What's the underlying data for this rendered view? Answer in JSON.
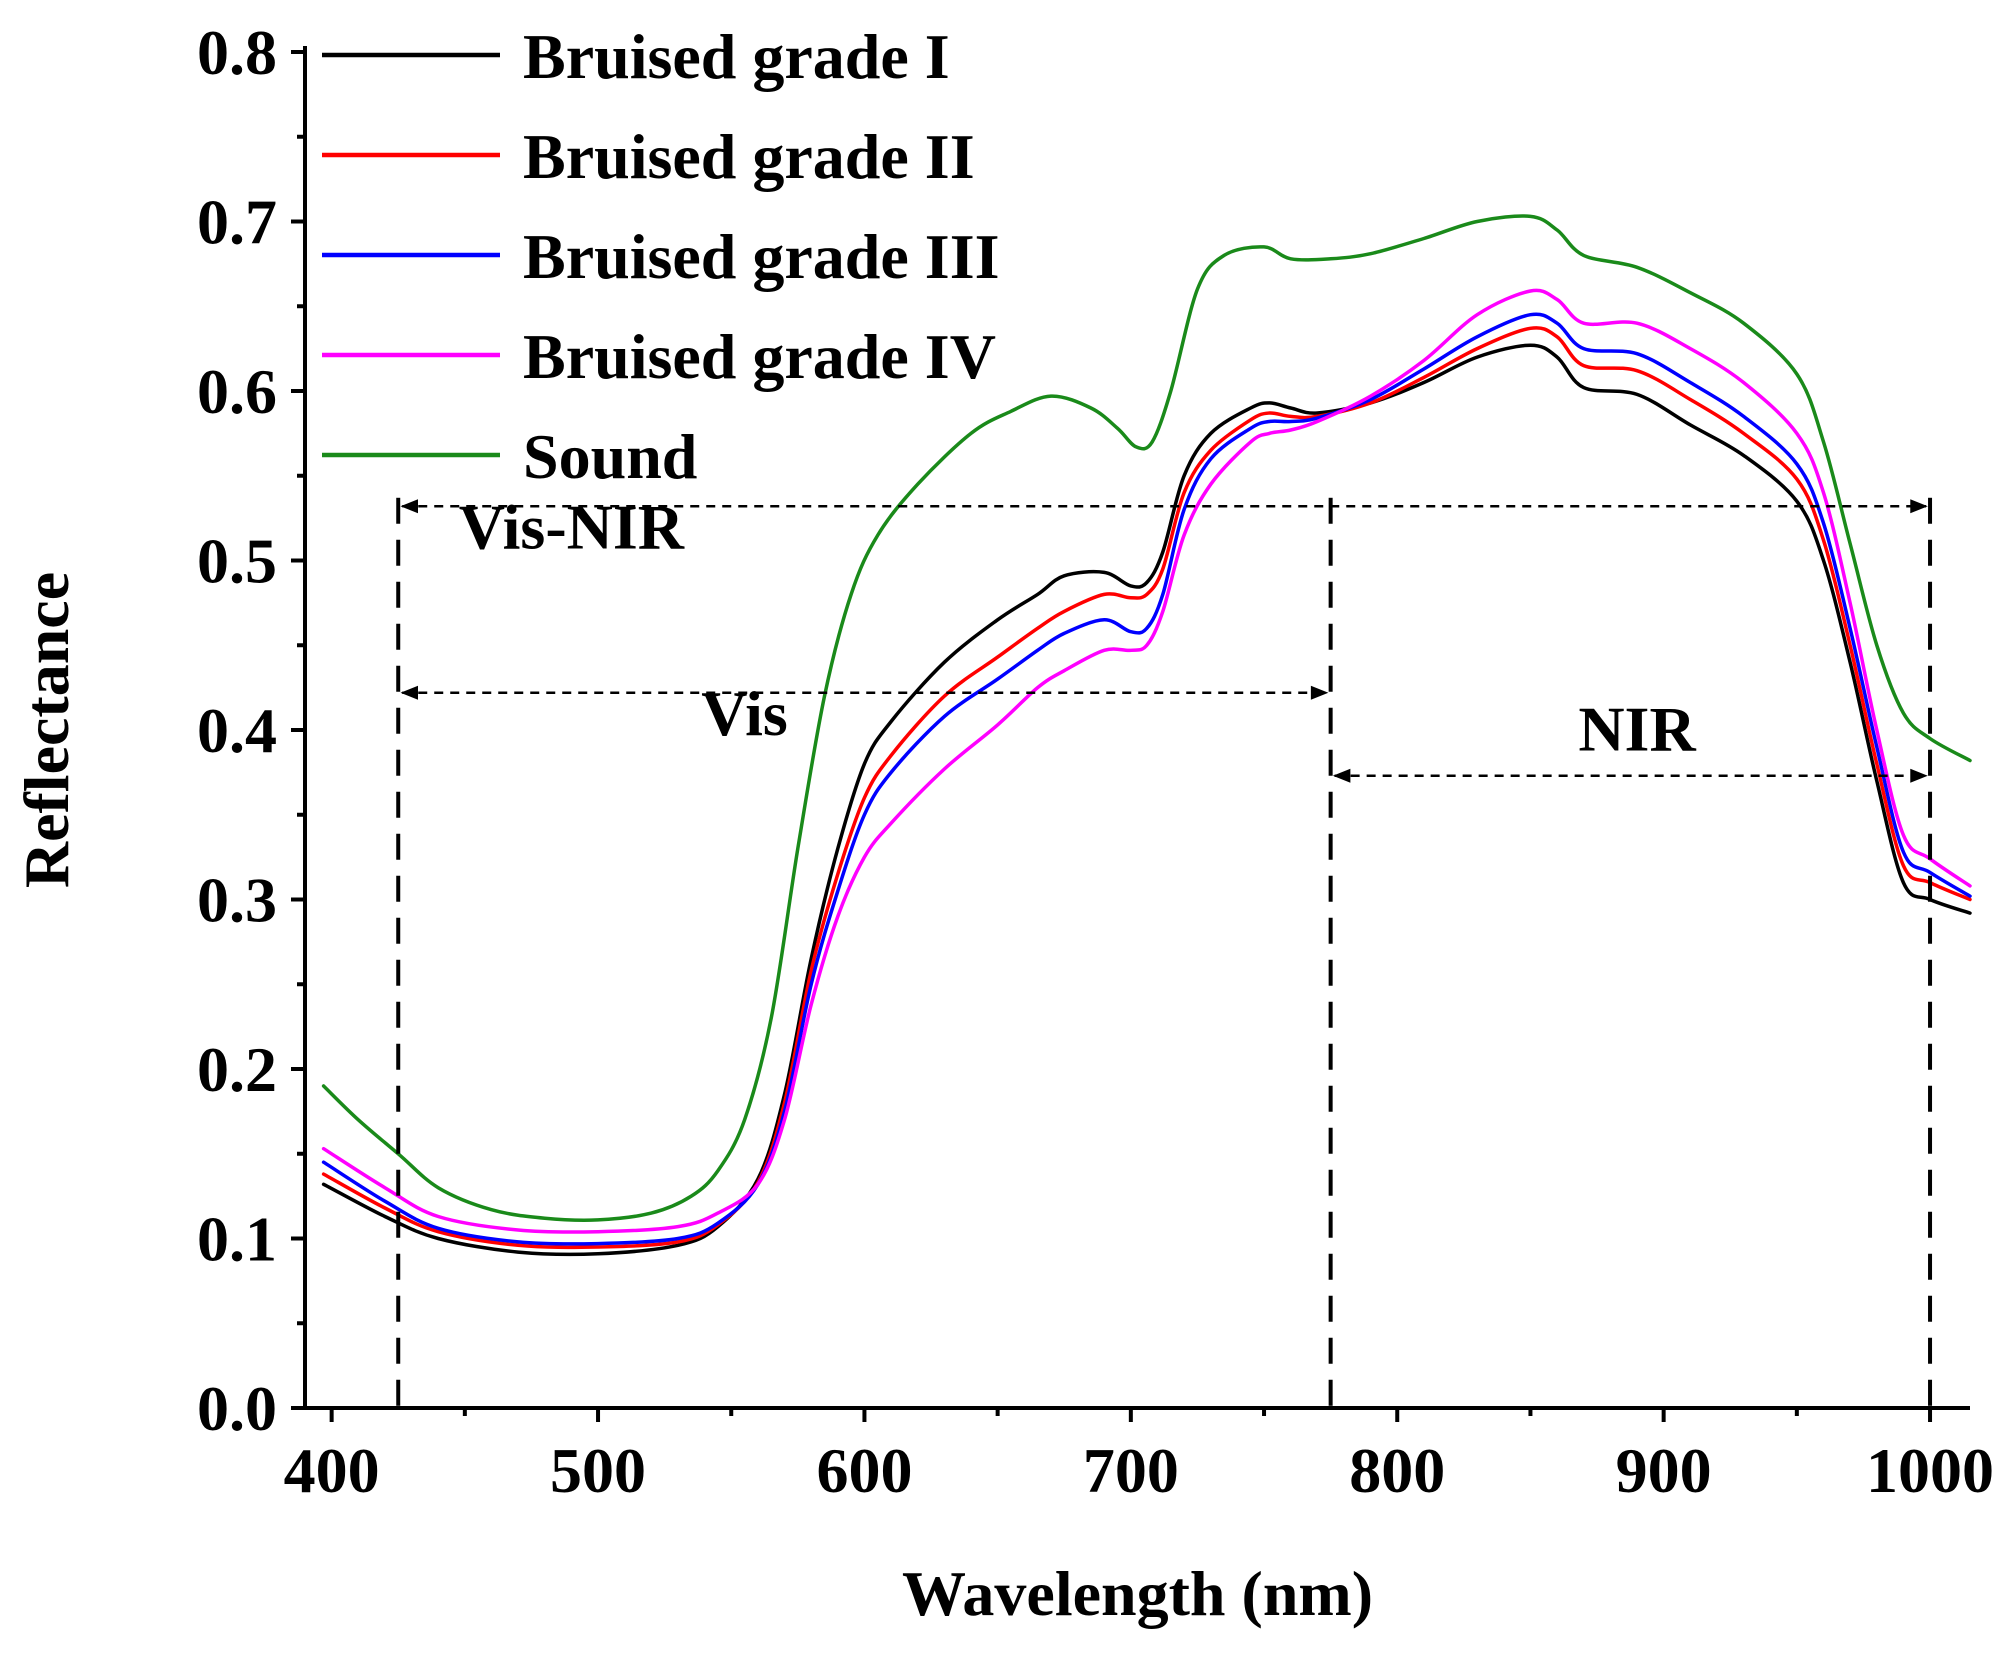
{
  "chart_data": {
    "type": "line",
    "title": "",
    "xlabel": "Wavelength (nm)",
    "ylabel": "Reflectance",
    "xlim": [
      390,
      1015
    ],
    "ylim": [
      0,
      0.8
    ],
    "x_ticks": [
      400,
      500,
      600,
      700,
      800,
      900,
      1000
    ],
    "x_tick_labels": [
      "400",
      "500",
      "600",
      "700",
      "800",
      "900",
      "1000"
    ],
    "y_ticks": [
      0,
      0.1,
      0.2,
      0.3,
      0.4,
      0.5,
      0.6,
      0.7,
      0.8
    ],
    "y_tick_labels": [
      "0.0",
      "0.1",
      "0.2",
      "0.3",
      "0.4",
      "0.5",
      "0.6",
      "0.7",
      "0.8"
    ],
    "grid": false,
    "legend_position": "top-left",
    "series": [
      {
        "name": "Bruised grade I",
        "color": "#000000",
        "points": [
          [
            397,
            0.132
          ],
          [
            420,
            0.113
          ],
          [
            440,
            0.1
          ],
          [
            470,
            0.092
          ],
          [
            500,
            0.091
          ],
          [
            530,
            0.096
          ],
          [
            545,
            0.107
          ],
          [
            560,
            0.135
          ],
          [
            570,
            0.185
          ],
          [
            580,
            0.265
          ],
          [
            590,
            0.33
          ],
          [
            600,
            0.38
          ],
          [
            610,
            0.405
          ],
          [
            630,
            0.44
          ],
          [
            650,
            0.465
          ],
          [
            665,
            0.48
          ],
          [
            675,
            0.491
          ],
          [
            690,
            0.493
          ],
          [
            700,
            0.485
          ],
          [
            706,
            0.487
          ],
          [
            712,
            0.505
          ],
          [
            720,
            0.55
          ],
          [
            730,
            0.575
          ],
          [
            745,
            0.59
          ],
          [
            752,
            0.593
          ],
          [
            760,
            0.59
          ],
          [
            770,
            0.587
          ],
          [
            790,
            0.593
          ],
          [
            810,
            0.605
          ],
          [
            830,
            0.62
          ],
          [
            850,
            0.627
          ],
          [
            860,
            0.62
          ],
          [
            870,
            0.602
          ],
          [
            890,
            0.598
          ],
          [
            910,
            0.58
          ],
          [
            930,
            0.562
          ],
          [
            950,
            0.535
          ],
          [
            960,
            0.5
          ],
          [
            970,
            0.44
          ],
          [
            980,
            0.37
          ],
          [
            990,
            0.31
          ],
          [
            1000,
            0.3
          ],
          [
            1015,
            0.292
          ]
        ]
      },
      {
        "name": "Bruised grade II",
        "color": "#ff0000",
        "points": [
          [
            397,
            0.138
          ],
          [
            420,
            0.118
          ],
          [
            440,
            0.104
          ],
          [
            470,
            0.096
          ],
          [
            500,
            0.095
          ],
          [
            530,
            0.098
          ],
          [
            545,
            0.108
          ],
          [
            560,
            0.133
          ],
          [
            570,
            0.18
          ],
          [
            580,
            0.258
          ],
          [
            590,
            0.315
          ],
          [
            600,
            0.36
          ],
          [
            610,
            0.385
          ],
          [
            630,
            0.42
          ],
          [
            650,
            0.443
          ],
          [
            665,
            0.46
          ],
          [
            675,
            0.47
          ],
          [
            690,
            0.48
          ],
          [
            700,
            0.478
          ],
          [
            706,
            0.48
          ],
          [
            712,
            0.495
          ],
          [
            720,
            0.54
          ],
          [
            730,
            0.565
          ],
          [
            745,
            0.583
          ],
          [
            752,
            0.587
          ],
          [
            760,
            0.585
          ],
          [
            770,
            0.585
          ],
          [
            790,
            0.593
          ],
          [
            810,
            0.608
          ],
          [
            830,
            0.625
          ],
          [
            850,
            0.637
          ],
          [
            860,
            0.632
          ],
          [
            870,
            0.615
          ],
          [
            890,
            0.612
          ],
          [
            910,
            0.595
          ],
          [
            930,
            0.575
          ],
          [
            950,
            0.548
          ],
          [
            960,
            0.512
          ],
          [
            970,
            0.45
          ],
          [
            980,
            0.38
          ],
          [
            990,
            0.32
          ],
          [
            1000,
            0.31
          ],
          [
            1015,
            0.3
          ]
        ]
      },
      {
        "name": "Bruised grade III",
        "color": "#0000ff",
        "points": [
          [
            397,
            0.145
          ],
          [
            420,
            0.122
          ],
          [
            440,
            0.106
          ],
          [
            470,
            0.098
          ],
          [
            500,
            0.097
          ],
          [
            530,
            0.1
          ],
          [
            545,
            0.109
          ],
          [
            560,
            0.132
          ],
          [
            570,
            0.175
          ],
          [
            580,
            0.25
          ],
          [
            590,
            0.305
          ],
          [
            600,
            0.35
          ],
          [
            610,
            0.375
          ],
          [
            630,
            0.408
          ],
          [
            650,
            0.43
          ],
          [
            665,
            0.447
          ],
          [
            675,
            0.457
          ],
          [
            690,
            0.465
          ],
          [
            700,
            0.458
          ],
          [
            706,
            0.46
          ],
          [
            712,
            0.48
          ],
          [
            720,
            0.53
          ],
          [
            730,
            0.56
          ],
          [
            745,
            0.578
          ],
          [
            752,
            0.582
          ],
          [
            760,
            0.582
          ],
          [
            770,
            0.584
          ],
          [
            790,
            0.595
          ],
          [
            810,
            0.613
          ],
          [
            830,
            0.632
          ],
          [
            850,
            0.645
          ],
          [
            860,
            0.64
          ],
          [
            870,
            0.625
          ],
          [
            890,
            0.622
          ],
          [
            910,
            0.605
          ],
          [
            930,
            0.585
          ],
          [
            950,
            0.557
          ],
          [
            960,
            0.522
          ],
          [
            970,
            0.46
          ],
          [
            980,
            0.39
          ],
          [
            990,
            0.328
          ],
          [
            1000,
            0.316
          ],
          [
            1015,
            0.302
          ]
        ]
      },
      {
        "name": "Bruised grade IV",
        "color": "#ff00ff",
        "points": [
          [
            397,
            0.153
          ],
          [
            420,
            0.13
          ],
          [
            440,
            0.113
          ],
          [
            470,
            0.105
          ],
          [
            500,
            0.104
          ],
          [
            530,
            0.107
          ],
          [
            545,
            0.115
          ],
          [
            560,
            0.132
          ],
          [
            570,
            0.17
          ],
          [
            580,
            0.238
          ],
          [
            590,
            0.29
          ],
          [
            600,
            0.325
          ],
          [
            610,
            0.345
          ],
          [
            630,
            0.377
          ],
          [
            650,
            0.403
          ],
          [
            665,
            0.425
          ],
          [
            675,
            0.435
          ],
          [
            690,
            0.447
          ],
          [
            700,
            0.447
          ],
          [
            706,
            0.45
          ],
          [
            712,
            0.47
          ],
          [
            720,
            0.515
          ],
          [
            730,
            0.545
          ],
          [
            745,
            0.57
          ],
          [
            752,
            0.575
          ],
          [
            760,
            0.577
          ],
          [
            770,
            0.582
          ],
          [
            790,
            0.597
          ],
          [
            810,
            0.618
          ],
          [
            830,
            0.645
          ],
          [
            850,
            0.659
          ],
          [
            860,
            0.654
          ],
          [
            870,
            0.64
          ],
          [
            890,
            0.64
          ],
          [
            910,
            0.625
          ],
          [
            930,
            0.605
          ],
          [
            950,
            0.575
          ],
          [
            960,
            0.54
          ],
          [
            970,
            0.475
          ],
          [
            980,
            0.4
          ],
          [
            990,
            0.338
          ],
          [
            1000,
            0.324
          ],
          [
            1015,
            0.308
          ]
        ]
      },
      {
        "name": "Sound",
        "color": "#1a8a1a",
        "points": [
          [
            397,
            0.19
          ],
          [
            410,
            0.17
          ],
          [
            425,
            0.15
          ],
          [
            440,
            0.13
          ],
          [
            460,
            0.117
          ],
          [
            480,
            0.112
          ],
          [
            500,
            0.111
          ],
          [
            520,
            0.115
          ],
          [
            535,
            0.125
          ],
          [
            545,
            0.14
          ],
          [
            555,
            0.17
          ],
          [
            565,
            0.23
          ],
          [
            575,
            0.33
          ],
          [
            585,
            0.42
          ],
          [
            595,
            0.48
          ],
          [
            605,
            0.515
          ],
          [
            620,
            0.545
          ],
          [
            640,
            0.575
          ],
          [
            655,
            0.588
          ],
          [
            670,
            0.597
          ],
          [
            685,
            0.59
          ],
          [
            695,
            0.578
          ],
          [
            702,
            0.567
          ],
          [
            708,
            0.57
          ],
          [
            715,
            0.6
          ],
          [
            725,
            0.66
          ],
          [
            735,
            0.68
          ],
          [
            750,
            0.685
          ],
          [
            760,
            0.678
          ],
          [
            775,
            0.678
          ],
          [
            790,
            0.681
          ],
          [
            810,
            0.69
          ],
          [
            830,
            0.7
          ],
          [
            850,
            0.703
          ],
          [
            860,
            0.695
          ],
          [
            870,
            0.68
          ],
          [
            890,
            0.673
          ],
          [
            910,
            0.658
          ],
          [
            930,
            0.64
          ],
          [
            950,
            0.61
          ],
          [
            960,
            0.57
          ],
          [
            970,
            0.51
          ],
          [
            980,
            0.45
          ],
          [
            990,
            0.41
          ],
          [
            1000,
            0.395
          ],
          [
            1015,
            0.382
          ]
        ]
      }
    ],
    "boundaries": [
      {
        "name": "vis-nir-start",
        "x": 425
      },
      {
        "name": "vis-end",
        "x": 775
      },
      {
        "name": "nir-end",
        "x": 1000
      }
    ],
    "ranges": [
      {
        "name": "Vis-NIR",
        "x_start": 425,
        "x_end": 1000,
        "y": 0.532,
        "label_x": 490,
        "label_y": 0.507
      },
      {
        "name": "Vis",
        "x_start": 425,
        "x_end": 775,
        "y": 0.422,
        "label_x": 555,
        "label_y": 0.397
      },
      {
        "name": "NIR",
        "x_start": 775,
        "x_end": 1000,
        "y": 0.373,
        "label_x": 890,
        "label_y": 0.388
      }
    ]
  }
}
